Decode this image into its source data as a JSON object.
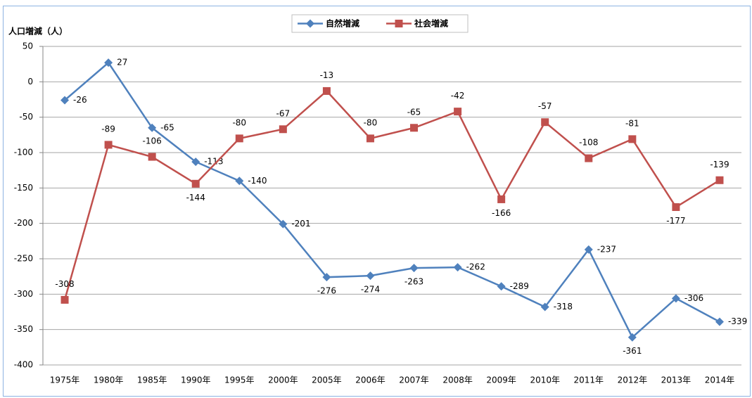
{
  "chart_data": {
    "type": "line",
    "y_label": "人口増減（人）",
    "categories": [
      "1975年",
      "1980年",
      "1985年",
      "1990年",
      "1995年",
      "2000年",
      "2005年",
      "2006年",
      "2007年",
      "2008年",
      "2009年",
      "2010年",
      "2011年",
      "2012年",
      "2013年",
      "2014年"
    ],
    "series": [
      {
        "name": "自然増減",
        "color": "#4f81bd",
        "marker": "diamond",
        "values": [
          -26,
          27,
          -65,
          -113,
          -140,
          -201,
          -276,
          -274,
          -263,
          -262,
          -289,
          -318,
          -237,
          -361,
          -306,
          -339
        ]
      },
      {
        "name": "社会増減",
        "color": "#c0504d",
        "marker": "square",
        "values": [
          -308,
          -89,
          -106,
          -144,
          -80,
          -67,
          -13,
          -80,
          -65,
          -42,
          -166,
          -57,
          -108,
          -81,
          -177,
          -139
        ]
      }
    ],
    "ylim": [
      -400,
      50
    ],
    "yticks": [
      50,
      0,
      -50,
      -100,
      -150,
      -200,
      -250,
      -300,
      -350,
      -400
    ],
    "grid": true,
    "legend": "top"
  }
}
